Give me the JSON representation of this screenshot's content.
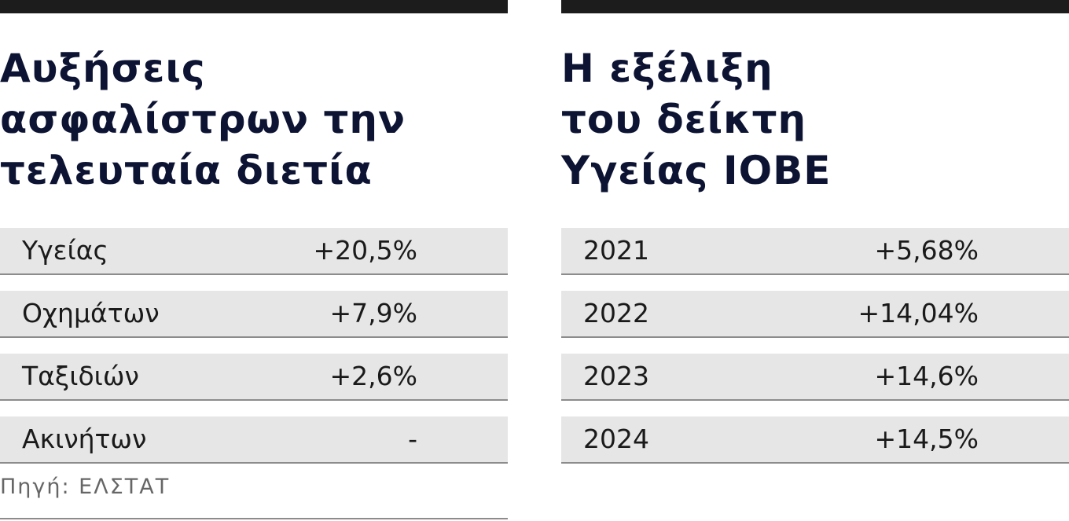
{
  "panels": [
    {
      "title": [
        "Αυξήσεις",
        "ασφαλίστρων την",
        "τελευταία διετία"
      ],
      "rows": [
        [
          "Υγείας",
          "+20,5%"
        ],
        [
          "Οχημάτων",
          "+7,9%"
        ],
        [
          "Ταξιδιών",
          "+2,6%"
        ],
        [
          "Ακινήτων",
          "-"
        ]
      ],
      "source": "Πηγή: ΕΛΣΤΑΤ"
    },
    {
      "title": [
        "Η εξέλιξη",
        "του δείκτη",
        "Υγείας ΙΟΒΕ"
      ],
      "rows": [
        [
          "2021",
          "+5,68%"
        ],
        [
          "2022",
          "+14,04%"
        ],
        [
          "2023",
          "+14,6%"
        ],
        [
          "2024",
          "+14,5%"
        ]
      ]
    }
  ]
}
